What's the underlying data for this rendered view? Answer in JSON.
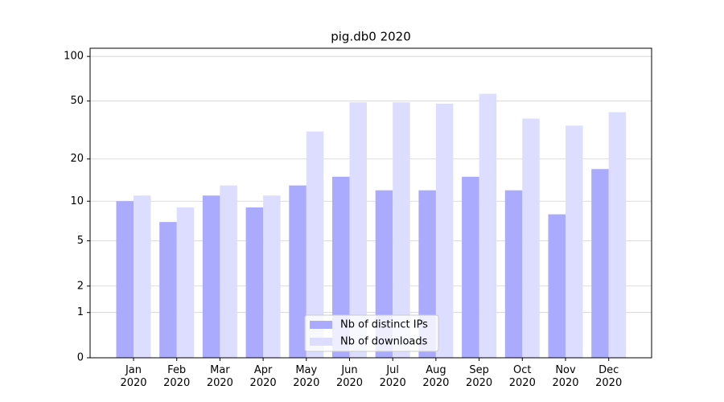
{
  "chart_data": {
    "type": "bar",
    "title": "pig.db0 2020",
    "categories": [
      "Jan\n2020",
      "Feb\n2020",
      "Mar\n2020",
      "Apr\n2020",
      "May\n2020",
      "Jun\n2020",
      "Jul\n2020",
      "Aug\n2020",
      "Sep\n2020",
      "Oct\n2020",
      "Nov\n2020",
      "Dec\n2020"
    ],
    "series": [
      {
        "name": "Nb of distinct IPs",
        "color": "#aaaaff",
        "values": [
          10,
          7,
          11,
          9,
          13,
          15,
          12,
          12,
          15,
          12,
          8,
          17
        ]
      },
      {
        "name": "Nb of downloads",
        "color": "#ddddff",
        "values": [
          11,
          9,
          13,
          11,
          31,
          49,
          49,
          48,
          56,
          38,
          34,
          42
        ]
      }
    ],
    "yscale": "log1p",
    "ylim": [
      0,
      113.5
    ],
    "yticks": [
      0,
      1,
      2,
      5,
      10,
      20,
      50,
      100
    ],
    "grid": true,
    "legend": "lower center"
  }
}
